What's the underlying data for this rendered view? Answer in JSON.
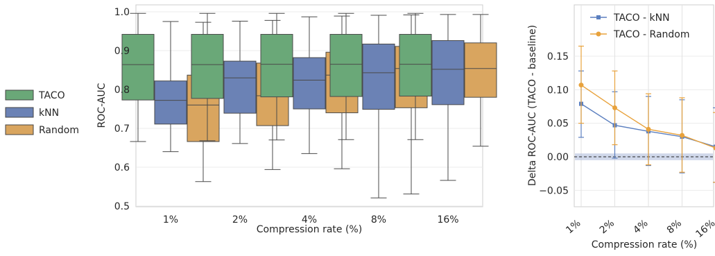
{
  "chart_data": [
    {
      "type": "boxplot",
      "xlabel": "Compression rate (%)",
      "ylabel": "ROC-AUC",
      "ylim": [
        0.5,
        1.0
      ],
      "yticks": [
        "0.5",
        "0.6",
        "0.7",
        "0.8",
        "0.9",
        "1.0"
      ],
      "categories": [
        "1%",
        "2%",
        "4%",
        "8%",
        "16%"
      ],
      "grid": true,
      "legend_position": "left-outside",
      "series": [
        {
          "name": "TACO",
          "color": "#6aa878",
          "boxes": [
            {
              "whislo": 0.666,
              "q1": 0.773,
              "med": 0.864,
              "q3": 0.942,
              "whishi": 0.996
            },
            {
              "whislo": 0.668,
              "q1": 0.777,
              "med": 0.864,
              "q3": 0.942,
              "whishi": 0.996
            },
            {
              "whislo": 0.67,
              "q1": 0.781,
              "med": 0.865,
              "q3": 0.942,
              "whishi": 0.996
            },
            {
              "whislo": 0.671,
              "q1": 0.782,
              "med": 0.865,
              "q3": 0.942,
              "whishi": 0.996
            },
            {
              "whislo": 0.671,
              "q1": 0.783,
              "med": 0.865,
              "q3": 0.942,
              "whishi": 0.996
            }
          ]
        },
        {
          "name": "kNN",
          "color": "#6b82b5",
          "boxes": [
            {
              "whislo": 0.64,
              "q1": 0.711,
              "med": 0.772,
              "q3": 0.822,
              "whishi": 0.975
            },
            {
              "whislo": 0.661,
              "q1": 0.739,
              "med": 0.83,
              "q3": 0.873,
              "whishi": 0.976
            },
            {
              "whislo": 0.635,
              "q1": 0.75,
              "med": 0.824,
              "q3": 0.882,
              "whishi": 0.987
            },
            {
              "whislo": 0.521,
              "q1": 0.749,
              "med": 0.843,
              "q3": 0.917,
              "whishi": 0.991
            },
            {
              "whislo": 0.566,
              "q1": 0.761,
              "med": 0.852,
              "q3": 0.926,
              "whishi": 0.993
            }
          ]
        },
        {
          "name": "Random",
          "color": "#d9a55f",
          "boxes": [
            {
              "whislo": 0.563,
              "q1": 0.666,
              "med": 0.76,
              "q3": 0.837,
              "whishi": 0.973
            },
            {
              "whislo": 0.594,
              "q1": 0.707,
              "med": 0.784,
              "q3": 0.868,
              "whishi": 0.978
            },
            {
              "whislo": 0.596,
              "q1": 0.74,
              "med": 0.837,
              "q3": 0.896,
              "whishi": 0.989
            },
            {
              "whislo": 0.531,
              "q1": 0.753,
              "med": 0.854,
              "q3": 0.911,
              "whishi": 0.992
            },
            {
              "whislo": 0.654,
              "q1": 0.78,
              "med": 0.854,
              "q3": 0.92,
              "whishi": 0.993
            }
          ]
        }
      ]
    },
    {
      "type": "line",
      "xlabel": "Compression rate (%)",
      "ylabel": "Delta ROC-AUC (TACO - baseline)",
      "categories": [
        "1%",
        "2%",
        "4%",
        "8%",
        "16%"
      ],
      "ylim": [
        -0.065,
        0.18
      ],
      "yticks": [
        "−0.05",
        "0.00",
        "0.05",
        "0.10",
        "0.15"
      ],
      "ytick_values": [
        -0.05,
        0.0,
        0.05,
        0.1,
        0.15
      ],
      "grid": true,
      "legend_position": "top-right",
      "baseline": {
        "value": 0.0,
        "band": [
          -0.005,
          0.005
        ]
      },
      "series": [
        {
          "name": "TACO - kNN",
          "color": "#5b7fbf",
          "marker": "square",
          "values": [
            0.079,
            0.047,
            0.038,
            0.03,
            0.015
          ],
          "err_low": [
            0.029,
            -0.002,
            -0.013,
            -0.024,
            -0.038
          ],
          "err_high": [
            0.128,
            0.097,
            0.09,
            0.085,
            0.073
          ]
        },
        {
          "name": "TACO - Random",
          "color": "#e8a23c",
          "marker": "circle",
          "values": [
            0.107,
            0.073,
            0.041,
            0.032,
            0.013
          ],
          "err_low": [
            0.05,
            0.018,
            -0.012,
            -0.023,
            -0.038
          ],
          "err_high": [
            0.165,
            0.128,
            0.094,
            0.088,
            0.066
          ]
        }
      ]
    }
  ]
}
